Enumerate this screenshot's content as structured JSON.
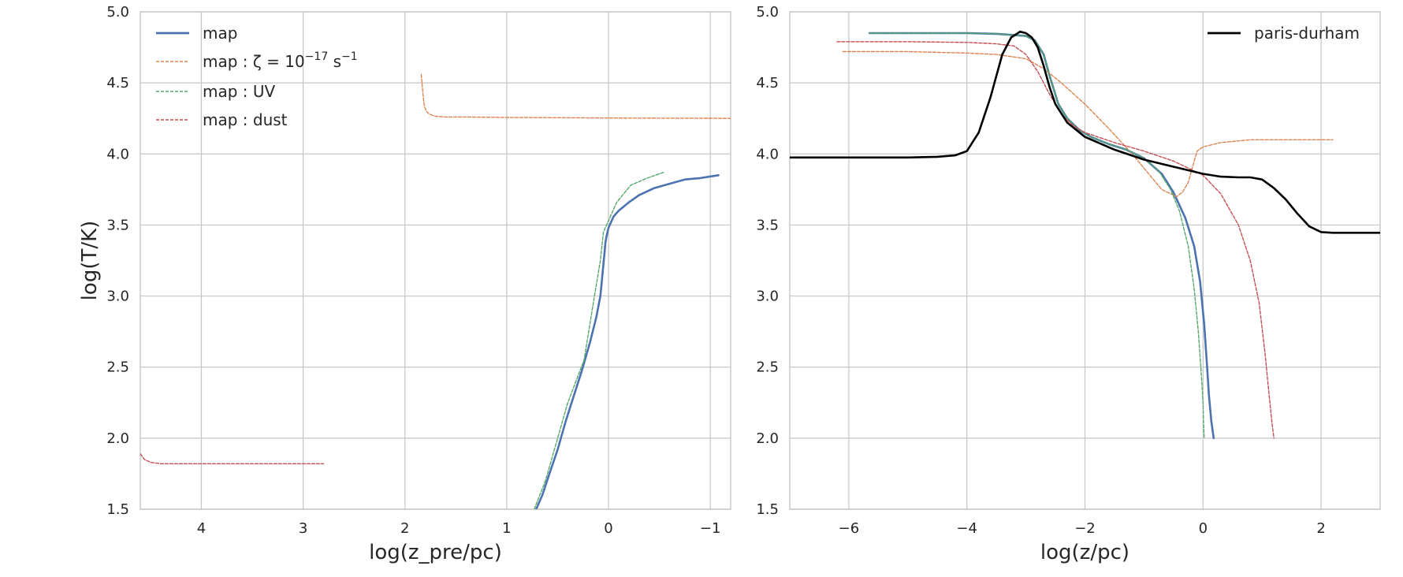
{
  "chart_data": [
    {
      "type": "line",
      "xlabel": "log(z_pre/pc)",
      "ylabel": "log(T/K)",
      "xlim": [
        4.6,
        -1.2
      ],
      "ylim": [
        1.5,
        5.0
      ],
      "x_reversed": true,
      "xticks": [
        4,
        3,
        2,
        1,
        0,
        -1
      ],
      "xtick_labels": [
        "4",
        "3",
        "2",
        "1",
        "0",
        "−1"
      ],
      "yticks": [
        1.5,
        2.0,
        2.5,
        3.0,
        3.5,
        4.0,
        4.5,
        5.0
      ],
      "ytick_labels": [
        "1.5",
        "2.0",
        "2.5",
        "3.0",
        "3.5",
        "4.0",
        "4.5",
        "5.0"
      ],
      "grid": true,
      "legend": {
        "position": "top-left",
        "entries": [
          {
            "label": "map",
            "style": "solid",
            "color": "#4c72b0"
          },
          {
            "label_prefix": "map : ζ = 10",
            "label_sup": "−17",
            "label_unit": " s",
            "label_unit_sup": "−1",
            "style": "dashed",
            "color": "#dd8452"
          },
          {
            "label": "map : UV",
            "style": "dashed",
            "color": "#55a868"
          },
          {
            "label": "map : dust",
            "style": "dashed",
            "color": "#c44e52"
          }
        ]
      },
      "series": [
        {
          "name": "map",
          "color": "#4c72b0",
          "style": "solid",
          "x": [
            0.71,
            0.65,
            0.58,
            0.5,
            0.42,
            0.34,
            0.26,
            0.18,
            0.12,
            0.08,
            0.06,
            0.04,
            0.03,
            0.02,
            0.0,
            -0.05,
            -0.1,
            -0.2,
            -0.3,
            -0.45,
            -0.6,
            -0.75,
            -0.9,
            -1.08
          ],
          "y": [
            1.5,
            1.6,
            1.75,
            1.92,
            2.12,
            2.3,
            2.48,
            2.68,
            2.85,
            3.0,
            3.15,
            3.3,
            3.38,
            3.42,
            3.48,
            3.56,
            3.6,
            3.66,
            3.71,
            3.76,
            3.79,
            3.82,
            3.83,
            3.85
          ]
        },
        {
          "name": "map : ζ = 10^−17 s^−1",
          "color": "#dd8452",
          "style": "dashed",
          "x": [
            1.84,
            1.83,
            1.82,
            1.81,
            1.79,
            1.76,
            1.7,
            1.6,
            1.4,
            1.0,
            0.5,
            0.0,
            -0.5,
            -1.0,
            -1.2
          ],
          "y": [
            4.56,
            4.48,
            4.4,
            4.34,
            4.3,
            4.28,
            4.265,
            4.26,
            4.26,
            4.257,
            4.255,
            4.253,
            4.252,
            4.251,
            4.25
          ]
        },
        {
          "name": "map : UV",
          "color": "#55a868",
          "style": "dashed",
          "x": [
            0.73,
            0.62,
            0.5,
            0.4,
            0.24,
            0.15,
            0.08,
            0.05,
            0.0,
            -0.08,
            -0.22,
            -0.38,
            -0.54
          ],
          "y": [
            1.5,
            1.7,
            2.0,
            2.25,
            2.55,
            2.95,
            3.25,
            3.45,
            3.53,
            3.66,
            3.78,
            3.83,
            3.87
          ]
        },
        {
          "name": "map : dust",
          "color": "#c44e52",
          "style": "dashed",
          "x": [
            4.6,
            4.56,
            4.5,
            4.4,
            4.2,
            4.0,
            3.5,
            3.0,
            2.8
          ],
          "y": [
            1.89,
            1.85,
            1.83,
            1.82,
            1.82,
            1.82,
            1.82,
            1.82,
            1.82
          ]
        }
      ]
    },
    {
      "type": "line",
      "xlabel": "log(z/pc)",
      "ylabel": "",
      "xlim": [
        -7.0,
        3.0
      ],
      "ylim": [
        1.5,
        5.0
      ],
      "xticks": [
        -6,
        -4,
        -2,
        0,
        2
      ],
      "xtick_labels": [
        "−6",
        "−4",
        "−2",
        "0",
        "2"
      ],
      "yticks": [
        1.5,
        2.0,
        2.5,
        3.0,
        3.5,
        4.0,
        4.5,
        5.0
      ],
      "ytick_labels": [
        "1.5",
        "2.0",
        "2.5",
        "3.0",
        "3.5",
        "4.0",
        "4.5",
        "5.0"
      ],
      "grid": true,
      "legend": {
        "position": "top-right",
        "entries": [
          {
            "label": "paris-durham",
            "style": "solid",
            "color": "#000000"
          }
        ]
      },
      "series": [
        {
          "name": "map",
          "color": "#4c72b0",
          "style": "solid",
          "x": [
            -5.65,
            -5.0,
            -4.0,
            -3.5,
            -3.0,
            -2.85,
            -2.7,
            -2.6,
            -2.45,
            -2.3,
            -2.1,
            -1.9,
            -1.6,
            -1.3,
            -1.0,
            -0.7,
            -0.5,
            -0.3,
            -0.15,
            -0.05,
            0.02,
            0.07,
            0.1,
            0.14,
            0.18
          ],
          "y": [
            4.85,
            4.85,
            4.85,
            4.845,
            4.83,
            4.8,
            4.7,
            4.55,
            4.35,
            4.25,
            4.17,
            4.12,
            4.07,
            4.03,
            3.97,
            3.86,
            3.73,
            3.55,
            3.35,
            3.1,
            2.8,
            2.5,
            2.3,
            2.12,
            2.0
          ]
        },
        {
          "name": "map : ζ = 10^−17 s^−1",
          "color": "#dd8452",
          "style": "dashed",
          "x": [
            -6.1,
            -5.0,
            -4.0,
            -3.5,
            -3.0,
            -2.7,
            -2.4,
            -2.0,
            -1.6,
            -1.2,
            -0.9,
            -0.7,
            -0.55,
            -0.45,
            -0.35,
            -0.25,
            -0.15,
            -0.1,
            0.0,
            0.3,
            0.8,
            1.5,
            2.2
          ],
          "y": [
            4.72,
            4.72,
            4.71,
            4.7,
            4.67,
            4.6,
            4.5,
            4.35,
            4.18,
            4.0,
            3.85,
            3.75,
            3.72,
            3.7,
            3.73,
            3.8,
            3.95,
            4.02,
            4.05,
            4.08,
            4.1,
            4.1,
            4.1
          ]
        },
        {
          "name": "map : UV",
          "color": "#55a868",
          "style": "dashed",
          "x": [
            -5.65,
            -5.0,
            -4.0,
            -3.5,
            -3.0,
            -2.85,
            -2.7,
            -2.6,
            -2.45,
            -2.3,
            -2.1,
            -1.9,
            -1.6,
            -1.3,
            -1.0,
            -0.75,
            -0.55,
            -0.4,
            -0.25,
            -0.15,
            -0.08,
            -0.03,
            0.0,
            0.01,
            0.02
          ],
          "y": [
            4.85,
            4.85,
            4.85,
            4.845,
            4.83,
            4.8,
            4.7,
            4.55,
            4.35,
            4.25,
            4.17,
            4.12,
            4.07,
            4.03,
            3.97,
            3.88,
            3.75,
            3.6,
            3.35,
            3.05,
            2.75,
            2.45,
            2.25,
            2.1,
            2.0
          ]
        },
        {
          "name": "map : dust",
          "color": "#c44e52",
          "style": "dashed",
          "x": [
            -6.2,
            -5.0,
            -4.0,
            -3.5,
            -3.2,
            -3.0,
            -2.8,
            -2.6,
            -2.4,
            -2.2,
            -2.0,
            -1.5,
            -1.0,
            -0.5,
            0.0,
            0.3,
            0.6,
            0.8,
            0.95,
            1.05,
            1.12,
            1.17,
            1.2
          ],
          "y": [
            4.79,
            4.79,
            4.785,
            4.775,
            4.76,
            4.7,
            4.58,
            4.42,
            4.28,
            4.2,
            4.15,
            4.08,
            4.02,
            3.95,
            3.85,
            3.72,
            3.5,
            3.25,
            2.95,
            2.6,
            2.3,
            2.1,
            2.0
          ]
        },
        {
          "name": "paris-durham",
          "color": "#000000",
          "style": "solid",
          "x": [
            -7.0,
            -6.0,
            -5.0,
            -4.5,
            -4.2,
            -4.0,
            -3.8,
            -3.6,
            -3.4,
            -3.25,
            -3.1,
            -3.0,
            -2.9,
            -2.8,
            -2.7,
            -2.6,
            -2.5,
            -2.3,
            -2.0,
            -1.5,
            -1.0,
            -0.5,
            0.0,
            0.3,
            0.6,
            0.8,
            1.0,
            1.2,
            1.4,
            1.6,
            1.8,
            2.0,
            2.2,
            2.5,
            3.0
          ],
          "y": [
            3.975,
            3.975,
            3.975,
            3.98,
            3.99,
            4.02,
            4.15,
            4.4,
            4.7,
            4.82,
            4.86,
            4.85,
            4.82,
            4.75,
            4.62,
            4.47,
            4.35,
            4.22,
            4.12,
            4.03,
            3.96,
            3.91,
            3.86,
            3.84,
            3.835,
            3.835,
            3.82,
            3.76,
            3.68,
            3.58,
            3.49,
            3.45,
            3.445,
            3.445,
            3.445
          ]
        }
      ]
    }
  ]
}
